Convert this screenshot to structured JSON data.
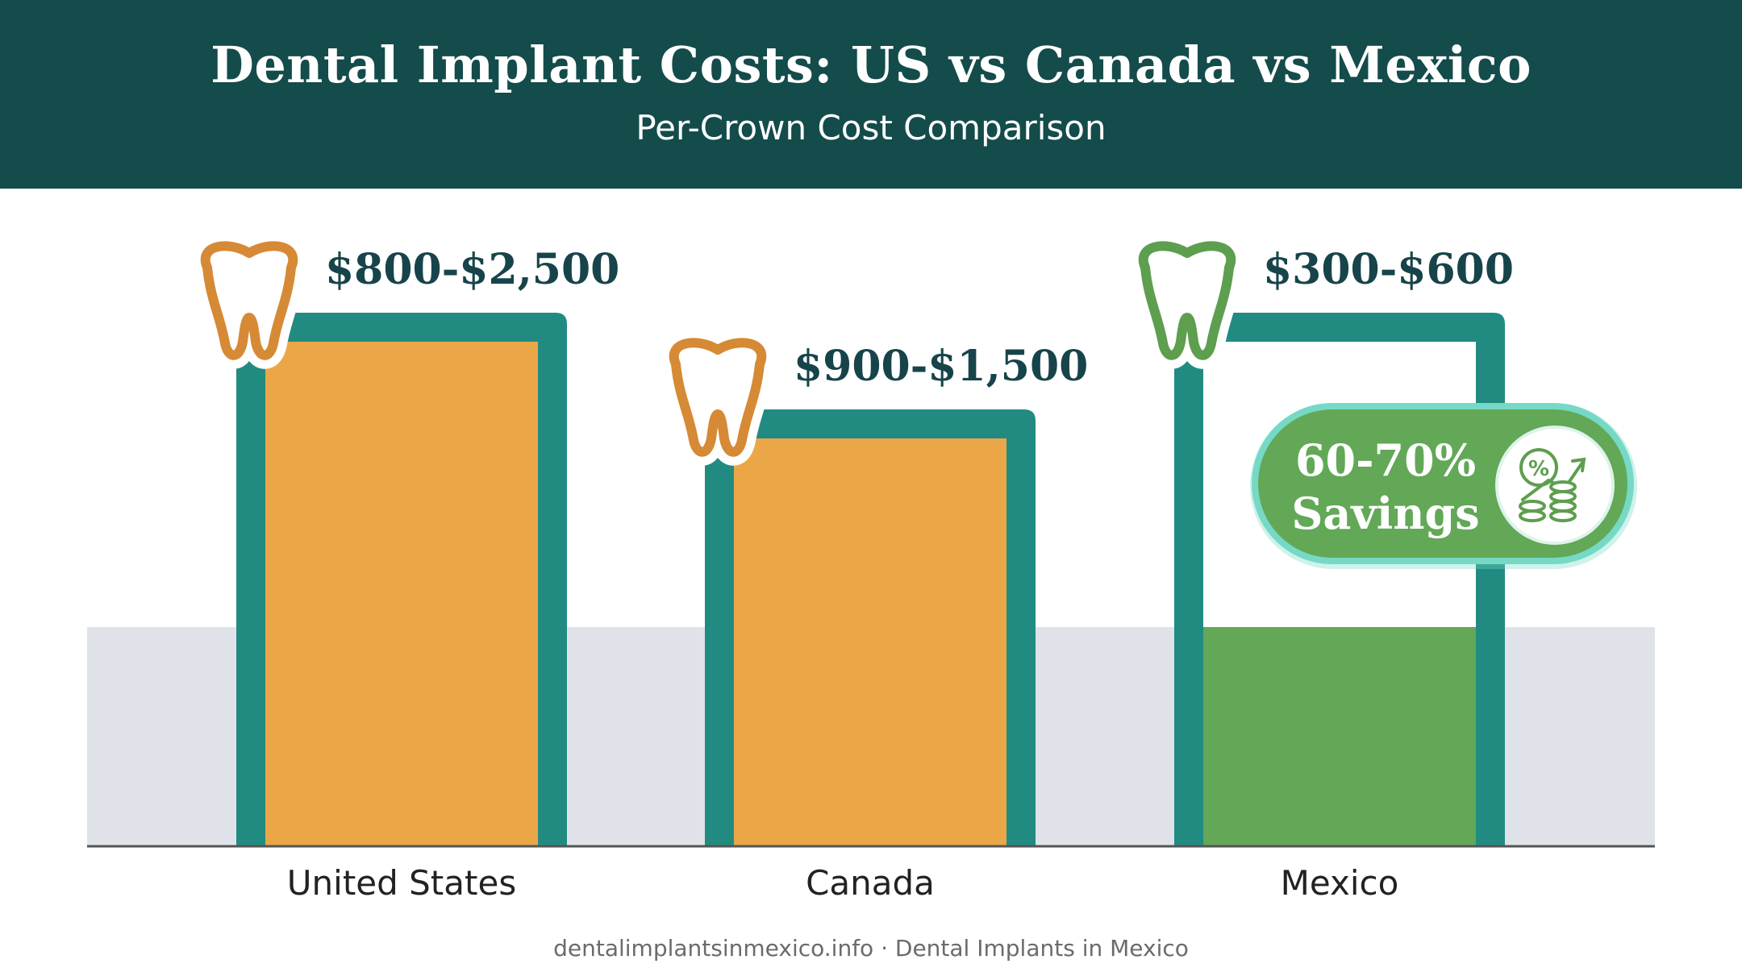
{
  "header": {
    "title": "Dental Implant Costs: US vs Canada vs Mexico",
    "subtitle": "Per-Crown Cost Comparison"
  },
  "footer": {
    "text": "dentalimplantsinmexico.info · Dental Implants in Mexico"
  },
  "badge": {
    "line1": "60-70%",
    "line2": "Savings",
    "icon": "savings-coins-icon"
  },
  "colors": {
    "header_bg": "#144b4b",
    "frame": "#218b82",
    "orange": "#eba747",
    "tooth_orange": "#d68a35",
    "green": "#62a857",
    "tooth_green": "#5e9e4f",
    "badge_border": "#76d9c6",
    "band": "#dfe3e9",
    "label_dark": "#17444a"
  },
  "chart_data": {
    "type": "bar",
    "categories": [
      "United States",
      "Canada",
      "Mexico"
    ],
    "ranges": [
      {
        "low": 800,
        "high": 2500,
        "label": "$800-$2,500",
        "fill": "orange",
        "tooth": "orange"
      },
      {
        "low": 900,
        "high": 1500,
        "label": "$900-$1,500",
        "fill": "orange",
        "tooth": "orange"
      },
      {
        "low": 300,
        "high": 600,
        "label": "$300-$600",
        "fill": "green",
        "tooth": "green"
      }
    ],
    "title": "Dental Implant Costs: US vs Canada vs Mexico",
    "subtitle": "Per-Crown Cost Comparison",
    "grid": false,
    "legend": "none"
  }
}
